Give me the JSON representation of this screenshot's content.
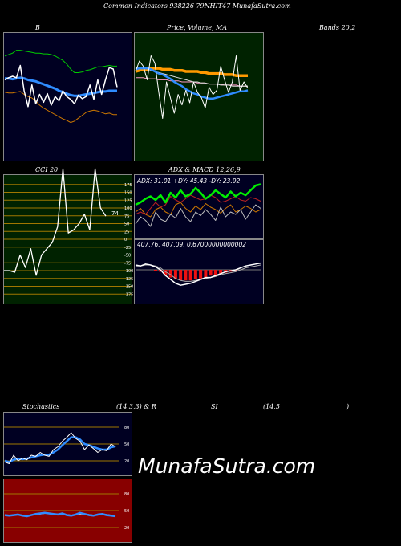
{
  "header": {
    "title": "Common Indicators 938226 79NHIT47 MunafaSutra.com"
  },
  "labels": {
    "bb_title": "B",
    "price_title": "Price, Volume, MA",
    "bands_title": "Bands 20,2",
    "cci_title": "CCI 20",
    "adx_title": "ADX & MACD 12,26,9",
    "adx_values": "ADX: 31.01 +DY: 45.43 -DY: 23.92",
    "macd_values": "407.76, 407.09, 0.67000000000002",
    "stoch_title": "Stochastics",
    "stoch_params": "(14,3,3) & R",
    "rsi_title": "SI",
    "rsi_params": "(14,5",
    "rsi_close": ")",
    "cci_last": "74"
  },
  "watermark": "MunafaSutra.com",
  "colors": {
    "bb_bg": "#000022",
    "price_bg": "#002200",
    "cci_bg": "#002200",
    "adx_bg": "#000022",
    "stoch_bg": "#000022",
    "rsi_bg": "#880000",
    "upper_band": "#00cc00",
    "lower_band": "#cc7700",
    "middle_band": "#2f8cff",
    "price": "#ffffff",
    "ma_orange": "#ff9900",
    "adx_green": "#00ee00",
    "grid_gold": "#a07700"
  },
  "chart_data": [
    {
      "type": "line",
      "name": "bollinger-bands",
      "x": [
        1,
        2,
        3,
        4,
        5,
        6,
        7,
        8,
        9,
        10,
        11,
        12,
        13,
        14,
        15,
        16,
        17,
        18,
        19,
        20,
        21,
        22,
        23,
        24,
        25,
        26,
        27,
        28,
        29,
        30
      ],
      "series": [
        {
          "role": "upper",
          "values": [
            78,
            80,
            82,
            86,
            86,
            85,
            84,
            83,
            82,
            82,
            81,
            81,
            80,
            78,
            75,
            72,
            67,
            60,
            55,
            55,
            56,
            58,
            59,
            61,
            63,
            63,
            64,
            65,
            64,
            64
          ]
        },
        {
          "role": "middle",
          "values": [
            47,
            47,
            46,
            47,
            48,
            47,
            45,
            44,
            43,
            41,
            39,
            37,
            35,
            33,
            30,
            28,
            26,
            24,
            23,
            23,
            24,
            25,
            26,
            27,
            28,
            29,
            29,
            30,
            30,
            30
          ]
        },
        {
          "role": "lower",
          "values": [
            28,
            27,
            27,
            28,
            29,
            25,
            22,
            20,
            16,
            10,
            6,
            3,
            0,
            -3,
            -6,
            -9,
            -11,
            -14,
            -12,
            -8,
            -4,
            0,
            2,
            3,
            2,
            0,
            -2,
            -1,
            -3,
            -3
          ]
        },
        {
          "role": "price",
          "values": [
            45,
            48,
            50,
            48,
            65,
            30,
            8,
            38,
            12,
            25,
            14,
            26,
            10,
            22,
            16,
            30,
            22,
            18,
            12,
            24,
            19,
            22,
            38,
            18,
            45,
            25,
            45,
            62,
            60,
            35
          ]
        }
      ]
    },
    {
      "type": "line",
      "name": "price-volume-ma",
      "series": [
        {
          "role": "ma-orange",
          "values": [
            30,
            31,
            32,
            32,
            33,
            33,
            33,
            32,
            32,
            32,
            31,
            31,
            31,
            30,
            30,
            30,
            30,
            29,
            29,
            28,
            28,
            28,
            28,
            27,
            27,
            27,
            26,
            26,
            26,
            26
          ]
        },
        {
          "role": "ma-pink",
          "values": [
            24,
            24,
            24,
            23,
            23,
            23,
            22,
            22,
            22,
            21,
            21,
            21,
            20,
            20,
            20,
            20,
            19,
            19,
            19,
            18,
            18,
            18,
            18,
            17,
            17,
            17,
            17,
            16,
            16,
            16
          ]
        },
        {
          "role": "ma-blue",
          "values": [
            32,
            33,
            33,
            33,
            32,
            30,
            28,
            27,
            25,
            23,
            20,
            18,
            16,
            13,
            11,
            9,
            8,
            6,
            5,
            4,
            4,
            5,
            6,
            7,
            8,
            9,
            10,
            11,
            11,
            12
          ]
        },
        {
          "role": "ma-white",
          "values": [
            34,
            33,
            32,
            32,
            31,
            30,
            29,
            28,
            27,
            26,
            25,
            24,
            23,
            22,
            21,
            20,
            20,
            19,
            19,
            18,
            18,
            18,
            17,
            17,
            17,
            16,
            16,
            16,
            16,
            16
          ]
        },
        {
          "role": "price",
          "values": [
            30,
            40,
            35,
            22,
            45,
            38,
            10,
            -15,
            20,
            5,
            -10,
            8,
            -2,
            12,
            0,
            20,
            10,
            5,
            -5,
            15,
            8,
            12,
            35,
            22,
            10,
            20,
            45,
            12,
            20,
            14
          ]
        }
      ]
    },
    {
      "type": "line",
      "name": "cci",
      "ylim": [
        -200,
        200
      ],
      "ticks": [
        "175",
        "150",
        "125",
        "100",
        "75",
        "50",
        "25",
        "0",
        "-25",
        "-50",
        "-75",
        "-100",
        "-125",
        "-150",
        "-175"
      ],
      "series": [
        {
          "role": "cci",
          "values": [
            -100,
            -100,
            -105,
            -50,
            -90,
            -30,
            -115,
            -50,
            -30,
            -10,
            40,
            225,
            20,
            30,
            50,
            80,
            30,
            225,
            100,
            74
          ]
        }
      ]
    },
    {
      "type": "line",
      "name": "adx",
      "series": [
        {
          "role": "adx",
          "values": [
            20,
            22,
            20,
            25,
            30,
            26,
            28,
            35,
            32,
            30,
            33,
            36,
            34,
            32,
            33,
            36,
            34,
            30,
            31,
            33,
            35,
            32,
            31,
            34,
            33,
            31
          ]
        },
        {
          "role": "plus-di",
          "values": [
            28,
            30,
            33,
            35,
            32,
            36,
            30,
            38,
            34,
            40,
            35,
            37,
            42,
            38,
            33,
            36,
            40,
            37,
            34,
            39,
            35,
            38,
            36,
            40,
            44,
            45
          ]
        },
        {
          "role": "minus-di",
          "values": [
            22,
            25,
            20,
            18,
            24,
            26,
            22,
            20,
            28,
            30,
            25,
            22,
            27,
            24,
            29,
            26,
            24,
            21,
            25,
            28,
            22,
            24,
            27,
            25,
            22,
            24
          ]
        },
        {
          "role": "gray",
          "values": [
            12,
            18,
            15,
            10,
            22,
            16,
            14,
            20,
            17,
            25,
            18,
            14,
            22,
            19,
            24,
            20,
            15,
            26,
            18,
            22,
            20,
            24,
            16,
            22,
            28,
            25
          ]
        }
      ]
    },
    {
      "type": "line",
      "name": "macd",
      "series": [
        {
          "role": "macd",
          "values": [
            5,
            4,
            6,
            5,
            3,
            0,
            -6,
            -10,
            -14,
            -16,
            -15,
            -14,
            -12,
            -10,
            -8,
            -8,
            -6,
            -4,
            -2,
            -1,
            0,
            2,
            4,
            5,
            6,
            7
          ]
        },
        {
          "role": "signal",
          "values": [
            4,
            4,
            5,
            5,
            4,
            2,
            -2,
            -5,
            -9,
            -11,
            -12,
            -12,
            -11,
            -10,
            -9,
            -8,
            -7,
            -5,
            -4,
            -3,
            -2,
            0,
            2,
            3,
            4,
            5
          ]
        },
        {
          "role": "histogram",
          "values": [
            0,
            0,
            0,
            0,
            -1,
            -2,
            -5,
            -8,
            -10,
            -11,
            -11,
            -11,
            -10,
            -9,
            -8,
            -6,
            -5,
            -4,
            -3,
            -2,
            -1,
            0,
            0,
            0,
            0,
            0
          ]
        }
      ]
    },
    {
      "type": "line",
      "name": "stochastics",
      "ticks": [
        "80",
        "50",
        "20"
      ],
      "series": [
        {
          "role": "k",
          "values": [
            18,
            15,
            30,
            20,
            25,
            22,
            30,
            28,
            35,
            30,
            28,
            40,
            45,
            55,
            62,
            70,
            60,
            55,
            40,
            48,
            42,
            35,
            40,
            38,
            50,
            45
          ]
        },
        {
          "role": "d",
          "values": [
            20,
            18,
            22,
            24,
            23,
            24,
            26,
            28,
            30,
            31,
            31,
            35,
            40,
            48,
            55,
            62,
            62,
            58,
            50,
            48,
            45,
            42,
            40,
            40,
            44,
            46
          ]
        }
      ]
    },
    {
      "type": "line",
      "name": "rsi",
      "ticks": [
        "80",
        "50",
        "20"
      ],
      "series": [
        {
          "role": "rsi",
          "values": [
            42,
            41,
            42,
            43,
            41,
            40,
            42,
            44,
            45,
            46,
            45,
            44,
            43,
            45,
            42,
            41,
            43,
            46,
            44,
            42,
            41,
            43,
            44,
            42,
            41,
            40
          ]
        },
        {
          "role": "ma",
          "values": [
            42,
            42,
            42,
            43,
            42,
            41,
            42,
            43,
            44,
            45,
            45,
            44,
            44,
            44,
            43,
            42,
            43,
            44,
            44,
            43,
            42,
            42,
            43,
            43,
            42,
            41
          ]
        }
      ]
    }
  ]
}
